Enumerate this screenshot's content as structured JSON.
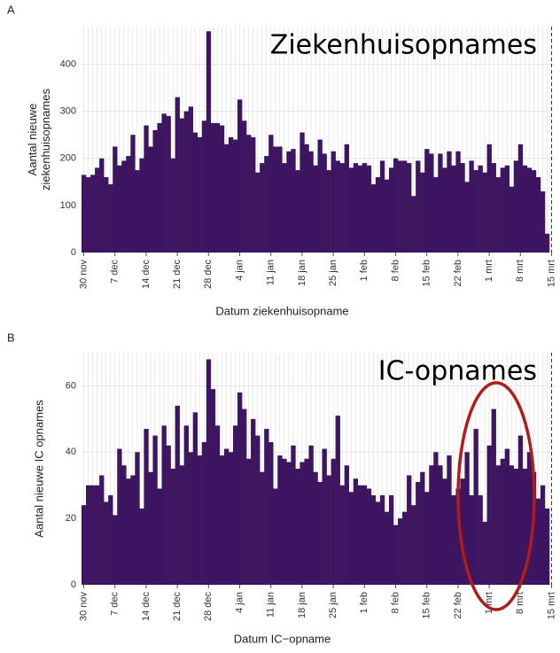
{
  "chart_data": [
    {
      "type": "bar",
      "panel": "A",
      "title": "Ziekenhuisopnames",
      "ylabel": [
        "Aantal nieuwe",
        "ziekenhuisopnames"
      ],
      "xlabel": "Datum ziekenhuisopname",
      "color": "#3d1560",
      "ylim": [
        0,
        480
      ],
      "yticks": [
        0,
        100,
        200,
        300,
        400
      ],
      "grid": true,
      "categories": [
        "30 nov",
        null,
        null,
        null,
        null,
        null,
        null,
        "7 dec",
        null,
        null,
        null,
        null,
        null,
        null,
        "14 dec",
        null,
        null,
        null,
        null,
        null,
        null,
        "21 dec",
        null,
        null,
        null,
        null,
        null,
        null,
        "28 dec",
        null,
        null,
        null,
        null,
        null,
        null,
        "4 jan",
        null,
        null,
        null,
        null,
        null,
        null,
        "11 jan",
        null,
        null,
        null,
        null,
        null,
        null,
        "18 jan",
        null,
        null,
        null,
        null,
        null,
        null,
        "25 jan",
        null,
        null,
        null,
        null,
        null,
        null,
        "1 feb",
        null,
        null,
        null,
        null,
        null,
        null,
        "8 feb",
        null,
        null,
        null,
        null,
        null,
        null,
        "15 feb",
        null,
        null,
        null,
        null,
        null,
        null,
        "22 feb",
        null,
        null,
        null,
        null,
        null,
        null,
        "1 mrt",
        null,
        null,
        null,
        null,
        null,
        null,
        "8 mrt",
        null,
        null,
        null,
        null,
        null,
        null,
        "15 mrt"
      ],
      "values": [
        165,
        160,
        165,
        180,
        200,
        160,
        145,
        225,
        185,
        195,
        205,
        250,
        175,
        200,
        270,
        225,
        260,
        275,
        295,
        290,
        200,
        330,
        285,
        300,
        310,
        255,
        245,
        280,
        470,
        275,
        275,
        270,
        230,
        245,
        240,
        325,
        280,
        250,
        245,
        170,
        190,
        205,
        250,
        225,
        225,
        190,
        215,
        220,
        175,
        255,
        230,
        215,
        185,
        240,
        210,
        175,
        215,
        195,
        190,
        230,
        180,
        190,
        185,
        190,
        185,
        145,
        160,
        195,
        155,
        180,
        200,
        195,
        195,
        190,
        120,
        195,
        170,
        220,
        210,
        160,
        210,
        180,
        215,
        185,
        215,
        190,
        150,
        195,
        175,
        185,
        170,
        230,
        190,
        160,
        180,
        185,
        140,
        195,
        230,
        185,
        180,
        175,
        160,
        130,
        40,
        null
      ]
    },
    {
      "type": "bar",
      "panel": "B",
      "title": "IC-opnames",
      "ylabel": [
        "Aantal nieuwe IC opnames"
      ],
      "xlabel": "Datum IC−opname",
      "color": "#3d1560",
      "ylim": [
        0,
        70
      ],
      "yticks": [
        0,
        20,
        40,
        60
      ],
      "grid": true,
      "categories": [
        "30 nov",
        null,
        null,
        null,
        null,
        null,
        null,
        "7 dec",
        null,
        null,
        null,
        null,
        null,
        null,
        "14 dec",
        null,
        null,
        null,
        null,
        null,
        null,
        "21 dec",
        null,
        null,
        null,
        null,
        null,
        null,
        "28 dec",
        null,
        null,
        null,
        null,
        null,
        null,
        "4 jan",
        null,
        null,
        null,
        null,
        null,
        null,
        "11 jan",
        null,
        null,
        null,
        null,
        null,
        null,
        "18 jan",
        null,
        null,
        null,
        null,
        null,
        null,
        "25 jan",
        null,
        null,
        null,
        null,
        null,
        null,
        "1 feb",
        null,
        null,
        null,
        null,
        null,
        null,
        "8 feb",
        null,
        null,
        null,
        null,
        null,
        null,
        "15 feb",
        null,
        null,
        null,
        null,
        null,
        null,
        "22 feb",
        null,
        null,
        null,
        null,
        null,
        null,
        "1 mrt",
        null,
        null,
        null,
        null,
        null,
        null,
        "8 mrt",
        null,
        null,
        null,
        null,
        null,
        null,
        "15 mrt"
      ],
      "values": [
        24,
        30,
        30,
        30,
        33,
        25,
        27,
        21,
        41,
        36,
        32,
        33,
        40,
        23,
        47,
        34,
        45,
        29,
        48,
        42,
        35,
        54,
        36,
        48,
        40,
        52,
        39,
        43,
        68,
        59,
        48,
        39,
        41,
        40,
        48,
        58,
        53,
        38,
        50,
        45,
        34,
        47,
        43,
        29,
        39,
        38,
        37,
        42,
        35,
        37,
        38,
        42,
        34,
        31,
        41,
        33,
        38,
        51,
        30,
        36,
        28,
        32,
        30,
        30,
        29,
        27,
        25,
        27,
        22,
        27,
        18,
        20,
        22,
        33,
        24,
        31,
        34,
        28,
        36,
        40,
        36,
        32,
        39,
        27,
        29,
        32,
        40,
        27,
        47,
        27,
        19,
        42,
        53,
        36,
        38,
        41,
        36,
        35,
        45,
        35,
        40,
        34,
        26,
        30,
        23,
        null
      ]
    }
  ]
}
